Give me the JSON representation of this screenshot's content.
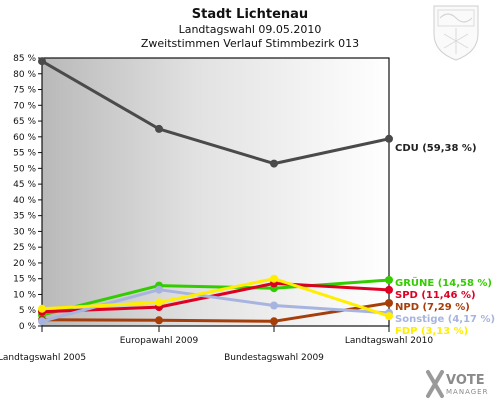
{
  "header": {
    "title": "Stadt Lichtenau",
    "subtitle1": "Landtagswahl 09.05.2010",
    "subtitle2": "Zweitstimmen Verlauf Stimmbezirk 013"
  },
  "watermark": {
    "brand": "VOTE",
    "brand_sub": "MANAGER"
  },
  "chart_data": {
    "type": "line",
    "title": "Stadt Lichtenau",
    "categories": [
      "Landtagswahl 2005",
      "Europawahl 2009",
      "Bundestagswahl 2009",
      "Landtagswahl 2010"
    ],
    "ylim": [
      0,
      85
    ],
    "yticks": [
      0,
      5,
      10,
      15,
      20,
      25,
      30,
      35,
      40,
      45,
      50,
      55,
      60,
      65,
      70,
      75,
      80,
      85
    ],
    "ytick_suffix": "%",
    "grid": false,
    "series": [
      {
        "name": "CDU",
        "end_label": "CDU (59,38 %)",
        "color": "#4a4a4a",
        "values": [
          84.0,
          62.5,
          51.5,
          59.38
        ]
      },
      {
        "name": "GRÜNE",
        "end_label": "GRÜNE (14,58 %)",
        "color": "#33cc00",
        "values": [
          3.5,
          12.8,
          12.0,
          14.58
        ]
      },
      {
        "name": "SPD",
        "end_label": "SPD (11,46 %)",
        "color": "#dd0022",
        "values": [
          4.5,
          6.0,
          13.5,
          11.46
        ]
      },
      {
        "name": "NPD",
        "end_label": "NPD (7,29 %)",
        "color": "#a63e0a",
        "values": [
          2.0,
          1.8,
          1.5,
          7.29
        ]
      },
      {
        "name": "Sonstige",
        "end_label": "Sonstige (4,17 %)",
        "color": "#a8b4e0",
        "values": [
          1.5,
          11.5,
          6.5,
          4.17
        ]
      },
      {
        "name": "FDP",
        "end_label": "FDP (3,13 %)",
        "color": "#ffee00",
        "values": [
          5.5,
          7.5,
          15.0,
          3.13
        ]
      }
    ]
  }
}
